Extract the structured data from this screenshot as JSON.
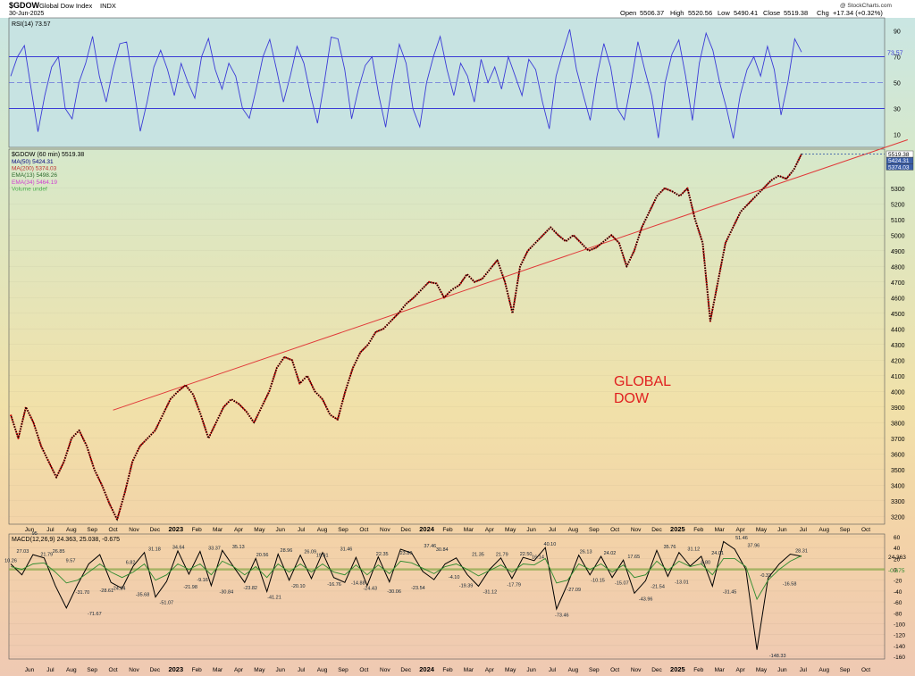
{
  "header": {
    "symbol": "$GDOW",
    "name": "Global Dow Index",
    "exchange": "INDX",
    "date": "30-Jun-2025",
    "watermark": "@ StockCharts.com",
    "open_label": "Open",
    "open": "5506.37",
    "high_label": "High",
    "high": "5520.56",
    "low_label": "Low",
    "low": "5490.41",
    "close_label": "Close",
    "close": "5519.38",
    "chg_label": "Chg",
    "chg": "+17.34 (+0.32%)"
  },
  "annotation": {
    "line1": "GLOBAL",
    "line2": "DOW",
    "color": "#e02020"
  },
  "colors": {
    "price": "#000000",
    "down": "#cc0000",
    "trendline": "#e03a3a",
    "rsi": "#3b3bd6",
    "macd": "#000000",
    "signal": "#2e8b2e",
    "hist": "#8aa84a"
  },
  "chart_data": [
    {
      "type": "line",
      "panel": "rsi",
      "title": "RSI(14) 73.57",
      "ylim": [
        0,
        100
      ],
      "y_ticks": [
        10,
        30,
        50,
        70,
        90
      ],
      "current_label": "73.57",
      "reference_lines": [
        30,
        50,
        70
      ],
      "series": [
        {
          "name": "RSI(14)",
          "values": [
            55,
            70,
            78.6,
            45,
            12,
            40,
            62,
            70,
            30,
            22,
            50,
            65,
            85.7,
            55,
            35,
            60,
            80,
            81.4,
            48,
            12.4,
            35,
            62,
            75,
            60,
            40,
            64.8,
            50,
            38,
            70,
            84.1,
            60,
            45,
            65,
            55,
            30,
            22.5,
            45,
            70,
            83.4,
            60,
            35,
            55,
            78,
            65,
            40,
            18.6,
            50,
            85.1,
            83.8,
            60,
            22,
            45,
            63.2,
            70,
            40,
            15.6,
            50,
            79.6,
            65,
            30,
            15.8,
            50,
            70,
            85.6,
            60,
            40,
            65,
            55,
            35,
            68,
            50,
            62,
            45,
            70,
            55,
            40,
            68,
            60,
            35,
            14.3,
            55,
            73.8,
            91.1,
            60,
            40,
            20.8,
            55,
            80.2,
            62,
            30,
            21.3,
            50,
            81.6,
            60,
            40,
            7.2,
            50,
            72,
            83,
            55,
            20.8,
            65,
            88.2,
            75,
            50,
            30,
            6.8,
            40,
            60,
            70,
            55,
            78,
            60,
            25,
            50,
            83.8,
            73.6
          ]
        }
      ]
    },
    {
      "type": "line",
      "panel": "price",
      "title": "$GDOW (60 min) 5519.38",
      "legend": [
        {
          "name": "MA(50) 5424.31",
          "color": "#000080"
        },
        {
          "name": "MA(200) 5374.03",
          "color": "#c03030"
        },
        {
          "name": "EMA(13) 5498.26",
          "color": "#2e6b2e"
        },
        {
          "name": "EMA(34) 5464.19",
          "color": "#d040d0"
        },
        {
          "name": "Volume undef",
          "color": "#4caf50"
        }
      ],
      "ylim": [
        3150,
        5550
      ],
      "y_ticks": [
        3200,
        3300,
        3400,
        3500,
        3600,
        3700,
        3800,
        3900,
        4000,
        4100,
        4200,
        4300,
        4400,
        4500,
        4600,
        4700,
        4800,
        4900,
        5000,
        5100,
        5200,
        5300
      ],
      "current_labels": [
        "5519.38",
        "5424.31",
        "5374.03"
      ],
      "x_ticks": [
        "Jun",
        "Jul",
        "Aug",
        "Sep",
        "Oct",
        "Nov",
        "Dec",
        "2023",
        "Feb",
        "Mar",
        "Apr",
        "May",
        "Jun",
        "Jul",
        "Aug",
        "Sep",
        "Oct",
        "Nov",
        "Dec",
        "2024",
        "Feb",
        "Mar",
        "Apr",
        "May",
        "Jun",
        "Jul",
        "Aug",
        "Sep",
        "Oct",
        "Nov",
        "Dec",
        "2025",
        "Feb",
        "Mar",
        "Apr",
        "May",
        "Jun",
        "Jul",
        "Aug",
        "Sep",
        "Oct"
      ],
      "trendline": [
        [
          4,
          3880
        ],
        [
          42,
          5610
        ]
      ],
      "series": [
        {
          "name": "$GDOW",
          "values": [
            3850,
            3700,
            3900,
            3800,
            3650,
            3550,
            3450,
            3550,
            3700,
            3750,
            3650,
            3500,
            3400,
            3280,
            3180,
            3350,
            3550,
            3650,
            3700,
            3750,
            3850,
            3950,
            4000,
            4040,
            3980,
            3850,
            3700,
            3800,
            3900,
            3950,
            3920,
            3870,
            3800,
            3900,
            4000,
            4150,
            4220,
            4200,
            4050,
            4100,
            4000,
            3950,
            3850,
            3820,
            4000,
            4150,
            4250,
            4300,
            4380,
            4400,
            4450,
            4500,
            4560,
            4600,
            4650,
            4700,
            4690,
            4600,
            4650,
            4680,
            4750,
            4700,
            4720,
            4780,
            4840,
            4700,
            4500,
            4800,
            4900,
            4950,
            5000,
            5050,
            5000,
            4960,
            5000,
            4950,
            4900,
            4920,
            4960,
            5000,
            4950,
            4800,
            4900,
            5050,
            5150,
            5250,
            5300,
            5280,
            5250,
            5300,
            5100,
            4950,
            4450,
            4700,
            4950,
            5050,
            5150,
            5200,
            5250,
            5300,
            5350,
            5380,
            5360,
            5420,
            5519
          ]
        }
      ]
    },
    {
      "type": "line",
      "panel": "macd",
      "title": "MACD(12,26,9) 24.363, 25.038, -0.675",
      "ylim": [
        -165,
        65
      ],
      "y_ticks": [
        60,
        40,
        20,
        0,
        -20,
        -40,
        -60,
        -80,
        -100,
        -120,
        -140,
        -160
      ],
      "current_labels": [
        "24.363",
        "-0.675"
      ],
      "annotations": [
        "10.26",
        "27.03",
        "95",
        "21.79",
        "26.85",
        "9.57",
        "-31.70",
        "-71.67",
        "-28.61",
        "-24.24",
        "6.82",
        "-35.68",
        "31.18",
        "-51.07",
        "34.64",
        "-21.98",
        "-9.16",
        "33.37",
        "-30.84",
        "35.13",
        "-23.82",
        "20.56",
        "-41.21",
        "28.96",
        "-20.10",
        "26.09",
        "19.91",
        "-16.76",
        "31.46",
        "-14.88",
        "-24.43",
        "22.35",
        "-30.06",
        "23.80",
        "-23.54",
        "37.46",
        "30.84",
        "-4.10",
        "-19.39",
        "21.35",
        "-31.12",
        "21.79",
        "-17.79",
        "22.50",
        "16.14",
        "40.10",
        "-73.46",
        "-27.09",
        "26.13",
        "-10.15",
        "24.02",
        "-15.07",
        "17.65",
        "-43.96",
        "-21.54",
        "35.76",
        "-13.01",
        "31.12",
        "6.80",
        "24.01",
        "-31.45",
        "51.46",
        "37.96",
        "-0.33",
        "-148.33",
        "-16.58",
        "28.31"
      ],
      "series": [
        {
          "name": "MACD",
          "values": [
            10,
            -10,
            27,
            21,
            -30,
            -71,
            -28,
            10,
            27,
            -24,
            -35,
            6,
            31,
            -51,
            -22,
            34,
            -9,
            33,
            -30,
            35,
            5,
            -24,
            20,
            -41,
            28,
            -20,
            26,
            -17,
            31,
            -15,
            -24,
            22,
            -30,
            23,
            -23,
            37,
            30,
            -4,
            -19,
            10,
            21,
            -10,
            -31,
            0,
            21,
            -17,
            22,
            16,
            40,
            -73,
            -27,
            26,
            -10,
            24,
            -15,
            17,
            -44,
            -21,
            35,
            -13,
            31,
            6,
            24,
            -31,
            51,
            37,
            0,
            -148,
            -16,
            10,
            28,
            24
          ]
        },
        {
          "name": "Signal",
          "values": [
            5,
            0,
            10,
            12,
            -5,
            -25,
            -20,
            -5,
            10,
            -5,
            -15,
            -5,
            10,
            -20,
            -10,
            10,
            0,
            10,
            -10,
            15,
            5,
            -10,
            5,
            -15,
            10,
            -5,
            10,
            -5,
            10,
            -5,
            -10,
            8,
            -10,
            8,
            -8,
            15,
            12,
            2,
            -8,
            5,
            10,
            0,
            -12,
            -2,
            8,
            -5,
            10,
            8,
            20,
            -25,
            -20,
            10,
            0,
            10,
            -5,
            8,
            -15,
            -10,
            15,
            -2,
            15,
            5,
            10,
            -10,
            20,
            20,
            5,
            -55,
            -20,
            0,
            15,
            25
          ]
        }
      ]
    }
  ]
}
